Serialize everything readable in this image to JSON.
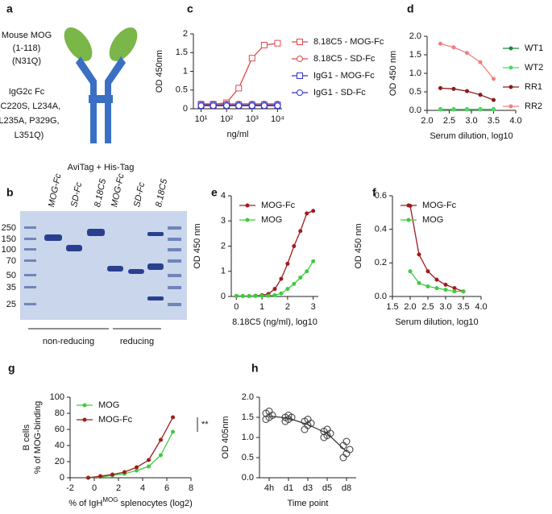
{
  "panel_a": {
    "letter": "a",
    "antigen_lines": [
      "Mouse MOG",
      "(1-118)",
      "(N31Q)"
    ],
    "fc_lines": [
      "IgG2c Fc",
      "(C220S, L234A,",
      "L235A, P329G,",
      "L351Q)"
    ],
    "tag": "AviTag + His-Tag"
  },
  "panel_b": {
    "letter": "b",
    "ladder": [
      "250",
      "150",
      "100",
      "70",
      "50",
      "35",
      "25"
    ],
    "lanes": [
      "MOG-Fc",
      "SD-Fc",
      "8.18C5",
      "MOG-Fc",
      "SD-Fc",
      "8.18C5"
    ],
    "groups": [
      "non-reducing",
      "reducing"
    ]
  },
  "chart_data": [
    {
      "type": "line",
      "panel": "c",
      "xscale": "log",
      "xlabel": "ng/ml",
      "ylabel": "OD 450nm",
      "xlim": [
        5,
        15000
      ],
      "ylim": [
        0,
        2
      ],
      "xticks": [
        {
          "value": 10,
          "label": "10¹"
        },
        {
          "value": 100,
          "label": "10²"
        },
        {
          "value": 1000,
          "label": "10³"
        },
        {
          "value": 10000,
          "label": "10⁴"
        }
      ],
      "yticks": [
        0,
        0.5,
        1,
        1.5,
        2
      ],
      "legend": "right",
      "x": [
        10,
        30,
        100,
        300,
        1000,
        3000,
        10000
      ],
      "series": [
        {
          "name": "8.18C5 - MOG-Fc",
          "color": "#e0474c",
          "marker": "open-square",
          "values": [
            0.12,
            0.12,
            0.16,
            0.55,
            1.35,
            1.7,
            1.75
          ]
        },
        {
          "name": "8.18C5 - SD-Fc",
          "color": "#e0474c",
          "marker": "open-circle",
          "values": [
            0.13,
            0.13,
            0.13,
            0.13,
            0.13,
            0.13,
            0.13
          ]
        },
        {
          "name": "IgG1 - MOG-Fc",
          "color": "#3333cc",
          "marker": "open-square",
          "values": [
            0.1,
            0.1,
            0.1,
            0.1,
            0.1,
            0.1,
            0.1
          ]
        },
        {
          "name": "IgG1 - SD-Fc",
          "color": "#3333cc",
          "marker": "open-circle",
          "values": [
            0.08,
            0.08,
            0.08,
            0.08,
            0.08,
            0.08,
            0.08
          ]
        }
      ]
    },
    {
      "type": "line",
      "panel": "d",
      "xlabel": "Serum dilution, log10",
      "ylabel": "OD 450 nm",
      "xlim": [
        2,
        4
      ],
      "ylim": [
        0,
        2
      ],
      "xticks": [
        {
          "value": 2,
          "label": "2.0"
        },
        2.5,
        {
          "value": 3,
          "label": "3.0"
        },
        3.5,
        {
          "value": 4,
          "label": "4.0"
        }
      ],
      "yticks": [
        {
          "value": 0,
          "label": "0.0"
        },
        0.5,
        {
          "value": 1,
          "label": "1.0"
        },
        1.5,
        {
          "value": 2,
          "label": "2.0"
        }
      ],
      "legend": "right",
      "x": [
        2.3,
        2.6,
        2.9,
        3.2,
        3.5
      ],
      "series": [
        {
          "name": "WT1",
          "color": "#1a8a3a",
          "marker": "circle",
          "values": [
            0.03,
            0.03,
            0.03,
            0.03,
            0.03
          ]
        },
        {
          "name": "WT2",
          "color": "#4cd964",
          "marker": "circle",
          "values": [
            0.02,
            0.02,
            0.02,
            0.02,
            0.02
          ]
        },
        {
          "name": "RR1",
          "color": "#8b1a1a",
          "marker": "circle",
          "values": [
            0.6,
            0.58,
            0.52,
            0.42,
            0.28
          ]
        },
        {
          "name": "RR2",
          "color": "#f08080",
          "marker": "circle",
          "values": [
            1.8,
            1.7,
            1.55,
            1.3,
            0.85
          ]
        }
      ]
    },
    {
      "type": "line",
      "panel": "e",
      "xlabel": "8.18C5 (ng/ml), log10",
      "ylabel": "OD 450 nm",
      "xlim": [
        -0.2,
        3.2
      ],
      "ylim": [
        0,
        4
      ],
      "xticks": [
        0,
        1,
        2,
        3
      ],
      "yticks": [
        0,
        1,
        2,
        3,
        4
      ],
      "legend": "upper left",
      "x": [
        0,
        0.25,
        0.5,
        0.75,
        1,
        1.25,
        1.5,
        1.75,
        2,
        2.25,
        2.5,
        2.75,
        3
      ],
      "series": [
        {
          "name": "MOG-Fc",
          "color": "#a01c1c",
          "marker": "circle",
          "values": [
            0.02,
            0.02,
            0.02,
            0.03,
            0.05,
            0.1,
            0.3,
            0.7,
            1.3,
            2.0,
            2.6,
            3.3,
            3.4
          ]
        },
        {
          "name": "MOG",
          "color": "#3dcc3d",
          "marker": "circle",
          "values": [
            0.02,
            0.02,
            0.02,
            0.02,
            0.02,
            0.03,
            0.05,
            0.12,
            0.3,
            0.5,
            0.75,
            1.0,
            1.4
          ]
        }
      ]
    },
    {
      "type": "line",
      "panel": "f",
      "xlabel": "Serum dilution, log10",
      "ylabel": "OD 450 nm",
      "xlim": [
        1.5,
        4
      ],
      "ylim": [
        0,
        0.6
      ],
      "xticks": [
        1.5,
        {
          "value": 2,
          "label": "2.0"
        },
        2.5,
        {
          "value": 3,
          "label": "3.0"
        },
        3.5,
        {
          "value": 4,
          "label": "4.0"
        }
      ],
      "yticks": [
        {
          "value": 0,
          "label": "0.0"
        },
        0.2,
        0.4,
        0.6
      ],
      "legend": "upper left",
      "x": [
        2,
        2.25,
        2.5,
        2.75,
        3,
        3.25,
        3.5
      ],
      "series": [
        {
          "name": "MOG-Fc",
          "color": "#a01c1c",
          "marker": "circle",
          "values": [
            0.54,
            0.25,
            0.15,
            0.1,
            0.07,
            0.05,
            0.03
          ]
        },
        {
          "name": "MOG",
          "color": "#3dcc3d",
          "marker": "circle",
          "values": [
            0.15,
            0.08,
            0.06,
            0.05,
            0.04,
            0.03,
            0.03
          ]
        }
      ]
    },
    {
      "type": "line",
      "panel": "g",
      "xlabel": [
        {
          "text": "% of IgH"
        },
        {
          "text": "MOG",
          "sup": true
        },
        {
          "text": " splenocytes (log2)"
        }
      ],
      "ylabel": [
        "% of MOG-binding",
        "B cells"
      ],
      "xlim": [
        -2,
        8
      ],
      "ylim": [
        0,
        100
      ],
      "xticks": [
        -2,
        0,
        2,
        4,
        6,
        8
      ],
      "yticks": [
        0,
        20,
        40,
        60,
        80,
        100
      ],
      "legend": "upper left",
      "annotation": "**",
      "x": [
        -0.5,
        0.5,
        1.5,
        2.5,
        3.5,
        4.5,
        5.5,
        6.5
      ],
      "series": [
        {
          "name": "MOG",
          "color": "#3dcc3d",
          "marker": "circle",
          "values": [
            0,
            1,
            3,
            5,
            9,
            14,
            28,
            57
          ]
        },
        {
          "name": "MOG-Fc",
          "color": "#a01c1c",
          "marker": "circle",
          "values": [
            0,
            2,
            4,
            7,
            13,
            22,
            47,
            75
          ]
        }
      ]
    },
    {
      "type": "strip",
      "panel": "h",
      "xlabel": "Time point",
      "ylabel": "OD 405nm",
      "ylim": [
        0,
        2
      ],
      "yticks": [
        {
          "value": 0,
          "label": "0.0"
        },
        0.5,
        {
          "value": 1,
          "label": "1.0"
        },
        1.5,
        {
          "value": 2,
          "label": "2.0"
        }
      ],
      "categories": [
        "4h",
        "d1",
        "d3",
        "d5",
        "d8"
      ],
      "color": "#333333",
      "values": [
        [
          1.45,
          1.5,
          1.55,
          1.6,
          1.65
        ],
        [
          1.4,
          1.45,
          1.5,
          1.5,
          1.55
        ],
        [
          1.2,
          1.3,
          1.35,
          1.4,
          1.45
        ],
        [
          1.0,
          1.05,
          1.1,
          1.15,
          1.2
        ],
        [
          0.5,
          0.6,
          0.7,
          0.8,
          0.9
        ]
      ],
      "trend": [
        1.53,
        1.48,
        1.32,
        1.1,
        0.65
      ]
    }
  ]
}
